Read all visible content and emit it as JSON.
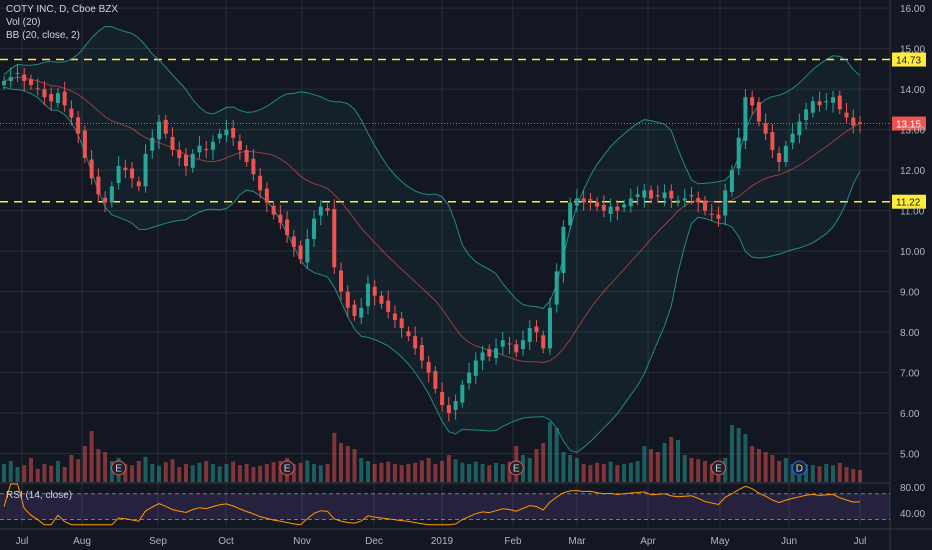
{
  "header": {
    "symbol_line": "COTY INC, D, Cboe BZX",
    "vol_line": "Vol (20)",
    "bb_line": "BB (20, close, 2)",
    "rsi_line": "RSI (14, close)"
  },
  "colors": {
    "background": "#131722",
    "up": "#26a69a",
    "down": "#ef5350",
    "bb_band": "#26a69a",
    "bb_basis": "#ef5350",
    "hline": "#ffeb3b",
    "rsi_line": "#ff9800",
    "rsi_fill": "#7e57c2"
  },
  "chart_data": {
    "type": "candlestick",
    "title": "COTY INC, D, Cboe BZX",
    "ylim": [
      4.3,
      16.2
    ],
    "price_ticks": [
      "16.00",
      "15.00",
      "14.00",
      "13.00",
      "12.00",
      "11.00",
      "10.00",
      "9.00",
      "8.00",
      "7.00",
      "6.00",
      "5.00"
    ],
    "x_ticks": [
      "Jul",
      "Aug",
      "Sep",
      "Oct",
      "Nov",
      "Dec",
      "2019",
      "Feb",
      "Mar",
      "Apr",
      "May",
      "Jun",
      "Jul"
    ],
    "horizontal_lines": [
      {
        "price": 14.73,
        "label": "14.73",
        "style": "dashed"
      },
      {
        "price": 11.22,
        "label": "11.22",
        "style": "dashed"
      }
    ],
    "last_price": {
      "price": 13.15,
      "label": "13.15"
    },
    "close_series": [
      14.2,
      14.3,
      14.4,
      14.2,
      14.1,
      14.0,
      13.8,
      13.7,
      13.9,
      13.6,
      13.3,
      12.9,
      12.3,
      11.8,
      11.4,
      11.2,
      11.6,
      12.1,
      12.0,
      11.8,
      11.6,
      12.4,
      12.8,
      13.2,
      12.9,
      12.5,
      12.3,
      12.1,
      12.4,
      12.6,
      12.5,
      12.7,
      12.9,
      13.0,
      12.8,
      12.5,
      12.2,
      11.9,
      11.5,
      11.2,
      10.9,
      10.7,
      10.4,
      10.1,
      9.8,
      10.3,
      10.8,
      11.1,
      11.0,
      9.6,
      9.0,
      8.6,
      8.4,
      8.6,
      9.2,
      8.9,
      8.7,
      8.5,
      8.3,
      8.1,
      7.9,
      7.6,
      7.3,
      7.0,
      6.6,
      6.2,
      6.0,
      6.3,
      6.7,
      7.0,
      7.3,
      7.5,
      7.4,
      7.6,
      7.8,
      7.7,
      7.5,
      7.8,
      8.1,
      8.0,
      7.6,
      8.6,
      9.5,
      10.6,
      11.2,
      11.3,
      11.2,
      11.25,
      11.1,
      11.0,
      11.1,
      11.0,
      11.15,
      11.3,
      11.4,
      11.5,
      11.3,
      11.35,
      11.45,
      11.3,
      11.25,
      11.3,
      11.35,
      11.2,
      11.0,
      10.9,
      10.8,
      11.5,
      12.0,
      12.8,
      13.8,
      13.6,
      13.2,
      12.9,
      12.5,
      12.2,
      12.6,
      12.9,
      13.2,
      13.5,
      13.7,
      13.6,
      13.7,
      13.8,
      13.5,
      13.3,
      13.1,
      13.15
    ],
    "volume_series": [
      0.3,
      0.35,
      0.25,
      0.28,
      0.4,
      0.22,
      0.3,
      0.27,
      0.35,
      0.25,
      0.45,
      0.38,
      0.6,
      0.85,
      0.55,
      0.5,
      0.35,
      0.4,
      0.3,
      0.28,
      0.35,
      0.42,
      0.3,
      0.27,
      0.33,
      0.38,
      0.25,
      0.3,
      0.28,
      0.32,
      0.35,
      0.3,
      0.26,
      0.3,
      0.34,
      0.28,
      0.3,
      0.25,
      0.27,
      0.3,
      0.33,
      0.35,
      0.4,
      0.3,
      0.32,
      0.36,
      0.3,
      0.28,
      0.3,
      0.82,
      0.65,
      0.6,
      0.55,
      0.4,
      0.35,
      0.3,
      0.32,
      0.34,
      0.3,
      0.28,
      0.3,
      0.32,
      0.36,
      0.4,
      0.3,
      0.35,
      0.45,
      0.38,
      0.32,
      0.3,
      0.34,
      0.3,
      0.28,
      0.32,
      0.3,
      0.34,
      0.6,
      0.45,
      0.4,
      0.55,
      0.65,
      1.0,
      0.9,
      0.5,
      0.45,
      0.4,
      0.3,
      0.28,
      0.32,
      0.3,
      0.34,
      0.28,
      0.3,
      0.32,
      0.35,
      0.6,
      0.55,
      0.5,
      0.65,
      0.75,
      0.7,
      0.45,
      0.4,
      0.38,
      0.35,
      0.3,
      0.32,
      0.4,
      0.95,
      0.9,
      0.8,
      0.6,
      0.55,
      0.5,
      0.45,
      0.35,
      0.4,
      0.3,
      0.32,
      0.3,
      0.28,
      0.26,
      0.3,
      0.28,
      0.32,
      0.25,
      0.22,
      0.2
    ],
    "events": [
      {
        "label": "E",
        "index": 17
      },
      {
        "label": "E",
        "index": 42
      },
      {
        "label": "E",
        "index": 76
      },
      {
        "label": "E",
        "index": 106
      },
      {
        "label": "D",
        "index": 118
      }
    ],
    "rsi_ticks": [
      "80.00",
      "40.00"
    ],
    "rsi_bounds": [
      70,
      30
    ]
  }
}
